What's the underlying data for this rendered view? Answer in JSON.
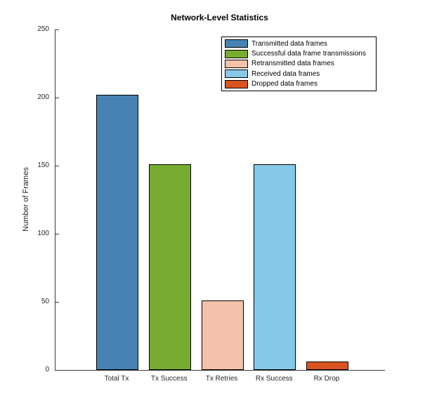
{
  "chart_data": {
    "type": "bar",
    "title": "Network-Level Statistics",
    "xlabel": "",
    "ylabel": "Number of Frames",
    "categories": [
      "Total Tx",
      "Tx Success",
      "Tx Retries",
      "Rx Success",
      "Rx Drop"
    ],
    "values": [
      202,
      151,
      51,
      151,
      6
    ],
    "bar_colors": [
      "#4682B4",
      "#77AC30",
      "#F4C2AA",
      "#87C9E8",
      "#D9541E"
    ],
    "bar_edge_color": "#000000",
    "ylim": [
      0,
      250
    ],
    "yticks": [
      0,
      50,
      100,
      150,
      200,
      250
    ],
    "grid": false,
    "axis_color": "#3a3a3a",
    "legend": {
      "position": "upper right",
      "entries": [
        {
          "label": "Transmitted data frames",
          "color": "#4682B4"
        },
        {
          "label": "Successful data frame transmissions",
          "color": "#77AC30"
        },
        {
          "label": "Retransmitted data frames",
          "color": "#F4C2AA"
        },
        {
          "label": "Received data frames",
          "color": "#87C9E8"
        },
        {
          "label": "Dropped data frames",
          "color": "#D9541E"
        }
      ]
    }
  }
}
